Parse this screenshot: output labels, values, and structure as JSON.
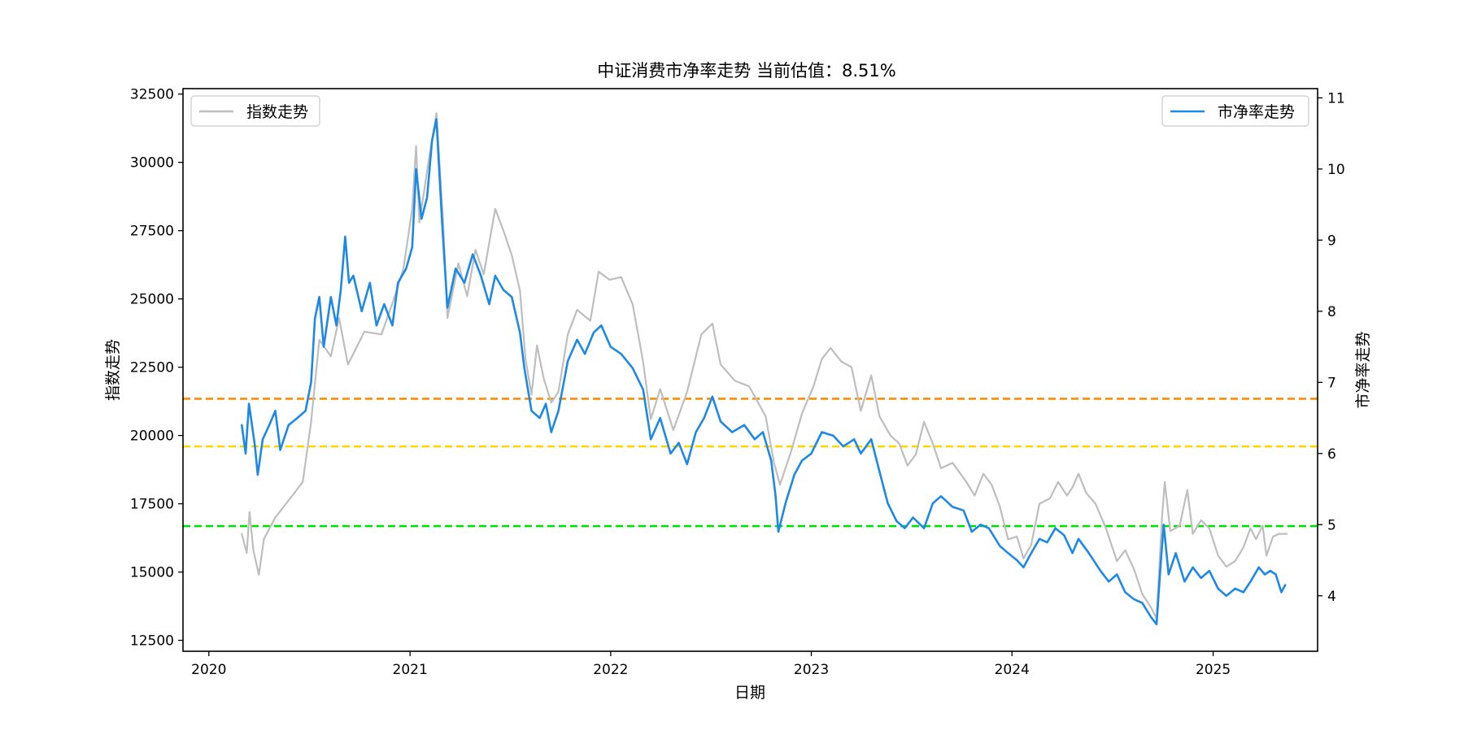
{
  "chart_data": {
    "type": "line",
    "title": "中证消费市净率走势 当前估值：8.51%",
    "xlabel": "日期",
    "ylabel_left": "指数走势",
    "ylabel_right": "市净率走势",
    "x_ticks": [
      "2020",
      "2021",
      "2022",
      "2023",
      "2024",
      "2025"
    ],
    "x_range": [
      "2019-11-15",
      "2025-07-10"
    ],
    "y_left_ticks": [
      12500,
      15000,
      17500,
      20000,
      22500,
      25000,
      27500,
      30000,
      32500
    ],
    "y_left_range": [
      12100,
      32700
    ],
    "y_right_ticks": [
      4,
      5,
      6,
      7,
      8,
      9,
      10,
      11
    ],
    "y_right_range": [
      3.22,
      11.13
    ],
    "legend_left": {
      "label": "指数走势",
      "placement": "upper-left"
    },
    "legend_right": {
      "label": "市净率走势",
      "placement": "upper-right"
    },
    "colors": {
      "index": "#bebebe",
      "pb": "#1e88e5",
      "line_orange": "#ff8c00",
      "line_yellow": "#ffd700",
      "line_green": "#00e000"
    },
    "reference_lines": [
      {
        "axis": "right",
        "value": 6.77,
        "color": "#ff8c00",
        "style": "dashed"
      },
      {
        "axis": "right",
        "value": 6.1,
        "color": "#ffd700",
        "style": "dashed"
      },
      {
        "axis": "right",
        "value": 4.98,
        "color": "#00e000",
        "style": "dashed"
      }
    ],
    "series": [
      {
        "name": "指数走势",
        "axis": "left",
        "points": [
          [
            "2020-03-01",
            16400
          ],
          [
            "2020-03-10",
            15700
          ],
          [
            "2020-03-15",
            17200
          ],
          [
            "2020-03-22",
            15800
          ],
          [
            "2020-04-01",
            14900
          ],
          [
            "2020-04-10",
            16200
          ],
          [
            "2020-05-01",
            17000
          ],
          [
            "2020-06-01",
            17800
          ],
          [
            "2020-06-20",
            18300
          ],
          [
            "2020-07-05",
            20500
          ],
          [
            "2020-07-20",
            23500
          ],
          [
            "2020-08-10",
            22900
          ],
          [
            "2020-08-25",
            24300
          ],
          [
            "2020-09-10",
            22600
          ],
          [
            "2020-10-10",
            23800
          ],
          [
            "2020-11-10",
            23700
          ],
          [
            "2020-12-01",
            24900
          ],
          [
            "2020-12-20",
            26100
          ],
          [
            "2021-01-05",
            28300
          ],
          [
            "2021-01-12",
            30600
          ],
          [
            "2021-01-18",
            27800
          ],
          [
            "2021-02-05",
            30200
          ],
          [
            "2021-02-18",
            31800
          ],
          [
            "2021-03-02",
            27900
          ],
          [
            "2021-03-10",
            24300
          ],
          [
            "2021-03-30",
            26300
          ],
          [
            "2021-04-15",
            25100
          ],
          [
            "2021-04-30",
            26800
          ],
          [
            "2021-05-15",
            25900
          ],
          [
            "2021-06-05",
            28300
          ],
          [
            "2021-06-20",
            27500
          ],
          [
            "2021-07-05",
            26600
          ],
          [
            "2021-07-20",
            25300
          ],
          [
            "2021-07-30",
            22800
          ],
          [
            "2021-08-10",
            21500
          ],
          [
            "2021-08-20",
            23300
          ],
          [
            "2021-09-01",
            22100
          ],
          [
            "2021-09-15",
            21200
          ],
          [
            "2021-09-28",
            21600
          ],
          [
            "2021-10-15",
            23700
          ],
          [
            "2021-11-01",
            24600
          ],
          [
            "2021-11-25",
            24200
          ],
          [
            "2021-12-10",
            26000
          ],
          [
            "2021-12-30",
            25700
          ],
          [
            "2022-01-20",
            25800
          ],
          [
            "2022-02-10",
            24800
          ],
          [
            "2022-03-01",
            22700
          ],
          [
            "2022-03-15",
            20600
          ],
          [
            "2022-04-01",
            21700
          ],
          [
            "2022-04-25",
            20200
          ],
          [
            "2022-05-20",
            21600
          ],
          [
            "2022-06-15",
            23700
          ],
          [
            "2022-07-05",
            24100
          ],
          [
            "2022-07-20",
            22600
          ],
          [
            "2022-08-15",
            22000
          ],
          [
            "2022-09-10",
            21800
          ],
          [
            "2022-10-10",
            20700
          ],
          [
            "2022-10-25",
            19000
          ],
          [
            "2022-11-05",
            18200
          ],
          [
            "2022-11-25",
            19400
          ],
          [
            "2022-12-15",
            20800
          ],
          [
            "2023-01-05",
            21800
          ],
          [
            "2023-01-20",
            22800
          ],
          [
            "2023-02-05",
            23200
          ],
          [
            "2023-02-25",
            22700
          ],
          [
            "2023-03-15",
            22500
          ],
          [
            "2023-04-01",
            20900
          ],
          [
            "2023-04-20",
            22200
          ],
          [
            "2023-05-05",
            20700
          ],
          [
            "2023-05-25",
            20000
          ],
          [
            "2023-06-10",
            19700
          ],
          [
            "2023-06-25",
            18900
          ],
          [
            "2023-07-10",
            19300
          ],
          [
            "2023-07-25",
            20500
          ],
          [
            "2023-08-10",
            19700
          ],
          [
            "2023-08-25",
            18800
          ],
          [
            "2023-09-15",
            19000
          ],
          [
            "2023-10-10",
            18300
          ],
          [
            "2023-10-25",
            17800
          ],
          [
            "2023-11-10",
            18600
          ],
          [
            "2023-11-25",
            18200
          ],
          [
            "2023-12-10",
            17400
          ],
          [
            "2023-12-25",
            16200
          ],
          [
            "2024-01-10",
            16300
          ],
          [
            "2024-01-22",
            15500
          ],
          [
            "2024-02-05",
            16000
          ],
          [
            "2024-02-20",
            17500
          ],
          [
            "2024-03-10",
            17700
          ],
          [
            "2024-03-25",
            18300
          ],
          [
            "2024-04-10",
            17800
          ],
          [
            "2024-04-20",
            18100
          ],
          [
            "2024-05-01",
            18600
          ],
          [
            "2024-05-15",
            17900
          ],
          [
            "2024-06-01",
            17500
          ],
          [
            "2024-06-20",
            16600
          ],
          [
            "2024-07-10",
            15400
          ],
          [
            "2024-07-25",
            15800
          ],
          [
            "2024-08-10",
            15100
          ],
          [
            "2024-08-25",
            14200
          ],
          [
            "2024-09-10",
            13700
          ],
          [
            "2024-09-20",
            13300
          ],
          [
            "2024-09-30",
            17000
          ],
          [
            "2024-10-05",
            18300
          ],
          [
            "2024-10-15",
            16500
          ],
          [
            "2024-11-01",
            16700
          ],
          [
            "2024-11-15",
            18000
          ],
          [
            "2024-11-25",
            16400
          ],
          [
            "2024-12-10",
            16900
          ],
          [
            "2024-12-25",
            16600
          ],
          [
            "2025-01-10",
            15600
          ],
          [
            "2025-01-25",
            15200
          ],
          [
            "2025-02-10",
            15400
          ],
          [
            "2025-02-25",
            15900
          ],
          [
            "2025-03-10",
            16600
          ],
          [
            "2025-03-20",
            16200
          ],
          [
            "2025-04-01",
            16700
          ],
          [
            "2025-04-08",
            15600
          ],
          [
            "2025-04-20",
            16300
          ],
          [
            "2025-05-01",
            16400
          ],
          [
            "2025-05-15",
            16400
          ]
        ]
      },
      {
        "name": "市净率走势",
        "axis": "right",
        "points": [
          [
            "2020-03-01",
            6.4
          ],
          [
            "2020-03-08",
            6.0
          ],
          [
            "2020-03-14",
            6.7
          ],
          [
            "2020-03-25",
            6.1
          ],
          [
            "2020-03-30",
            5.7
          ],
          [
            "2020-04-08",
            6.2
          ],
          [
            "2020-04-20",
            6.4
          ],
          [
            "2020-05-01",
            6.6
          ],
          [
            "2020-05-10",
            6.05
          ],
          [
            "2020-05-25",
            6.4
          ],
          [
            "2020-06-10",
            6.5
          ],
          [
            "2020-06-25",
            6.6
          ],
          [
            "2020-07-05",
            7.0
          ],
          [
            "2020-07-12",
            7.9
          ],
          [
            "2020-07-20",
            8.2
          ],
          [
            "2020-07-28",
            7.5
          ],
          [
            "2020-08-10",
            8.2
          ],
          [
            "2020-08-20",
            7.8
          ],
          [
            "2020-08-28",
            8.3
          ],
          [
            "2020-09-05",
            9.05
          ],
          [
            "2020-09-12",
            8.4
          ],
          [
            "2020-09-20",
            8.5
          ],
          [
            "2020-10-05",
            8.0
          ],
          [
            "2020-10-20",
            8.4
          ],
          [
            "2020-11-01",
            7.8
          ],
          [
            "2020-11-15",
            8.1
          ],
          [
            "2020-11-30",
            7.8
          ],
          [
            "2020-12-10",
            8.4
          ],
          [
            "2020-12-25",
            8.6
          ],
          [
            "2021-01-05",
            8.9
          ],
          [
            "2021-01-12",
            10.0
          ],
          [
            "2021-01-22",
            9.3
          ],
          [
            "2021-02-01",
            9.6
          ],
          [
            "2021-02-10",
            10.4
          ],
          [
            "2021-02-18",
            10.7
          ],
          [
            "2021-02-28",
            9.3
          ],
          [
            "2021-03-10",
            8.05
          ],
          [
            "2021-03-25",
            8.6
          ],
          [
            "2021-04-10",
            8.4
          ],
          [
            "2021-04-25",
            8.8
          ],
          [
            "2021-05-10",
            8.5
          ],
          [
            "2021-05-25",
            8.1
          ],
          [
            "2021-06-05",
            8.5
          ],
          [
            "2021-06-20",
            8.3
          ],
          [
            "2021-07-05",
            8.2
          ],
          [
            "2021-07-20",
            7.7
          ],
          [
            "2021-07-28",
            7.2
          ],
          [
            "2021-08-10",
            6.6
          ],
          [
            "2021-08-25",
            6.5
          ],
          [
            "2021-09-05",
            6.7
          ],
          [
            "2021-09-15",
            6.3
          ],
          [
            "2021-09-28",
            6.6
          ],
          [
            "2021-10-15",
            7.3
          ],
          [
            "2021-11-01",
            7.6
          ],
          [
            "2021-11-15",
            7.4
          ],
          [
            "2021-12-01",
            7.7
          ],
          [
            "2021-12-15",
            7.8
          ],
          [
            "2022-01-01",
            7.5
          ],
          [
            "2022-01-20",
            7.4
          ],
          [
            "2022-02-10",
            7.2
          ],
          [
            "2022-03-01",
            6.9
          ],
          [
            "2022-03-15",
            6.2
          ],
          [
            "2022-04-01",
            6.5
          ],
          [
            "2022-04-20",
            6.0
          ],
          [
            "2022-05-05",
            6.15
          ],
          [
            "2022-05-20",
            5.85
          ],
          [
            "2022-06-05",
            6.3
          ],
          [
            "2022-06-20",
            6.5
          ],
          [
            "2022-07-05",
            6.8
          ],
          [
            "2022-07-20",
            6.45
          ],
          [
            "2022-08-10",
            6.3
          ],
          [
            "2022-09-01",
            6.4
          ],
          [
            "2022-09-20",
            6.2
          ],
          [
            "2022-10-05",
            6.3
          ],
          [
            "2022-10-20",
            5.9
          ],
          [
            "2022-10-28",
            5.4
          ],
          [
            "2022-11-02",
            4.9
          ],
          [
            "2022-11-15",
            5.3
          ],
          [
            "2022-12-01",
            5.7
          ],
          [
            "2022-12-15",
            5.9
          ],
          [
            "2023-01-01",
            6.0
          ],
          [
            "2023-01-20",
            6.3
          ],
          [
            "2023-02-10",
            6.25
          ],
          [
            "2023-02-28",
            6.1
          ],
          [
            "2023-03-20",
            6.2
          ],
          [
            "2023-04-01",
            6.0
          ],
          [
            "2023-04-20",
            6.2
          ],
          [
            "2023-05-05",
            5.75
          ],
          [
            "2023-05-20",
            5.3
          ],
          [
            "2023-06-05",
            5.05
          ],
          [
            "2023-06-20",
            4.95
          ],
          [
            "2023-07-05",
            5.1
          ],
          [
            "2023-07-25",
            4.95
          ],
          [
            "2023-08-10",
            5.3
          ],
          [
            "2023-08-25",
            5.4
          ],
          [
            "2023-09-15",
            5.25
          ],
          [
            "2023-10-05",
            5.2
          ],
          [
            "2023-10-20",
            4.9
          ],
          [
            "2023-11-05",
            5.0
          ],
          [
            "2023-11-20",
            4.95
          ],
          [
            "2023-12-10",
            4.7
          ],
          [
            "2023-12-25",
            4.6
          ],
          [
            "2024-01-10",
            4.5
          ],
          [
            "2024-01-22",
            4.4
          ],
          [
            "2024-02-05",
            4.6
          ],
          [
            "2024-02-20",
            4.8
          ],
          [
            "2024-03-05",
            4.75
          ],
          [
            "2024-03-20",
            4.95
          ],
          [
            "2024-04-05",
            4.85
          ],
          [
            "2024-04-20",
            4.6
          ],
          [
            "2024-05-01",
            4.8
          ],
          [
            "2024-05-20",
            4.6
          ],
          [
            "2024-06-10",
            4.35
          ],
          [
            "2024-06-25",
            4.2
          ],
          [
            "2024-07-10",
            4.3
          ],
          [
            "2024-07-25",
            4.05
          ],
          [
            "2024-08-10",
            3.95
          ],
          [
            "2024-08-25",
            3.9
          ],
          [
            "2024-09-10",
            3.7
          ],
          [
            "2024-09-20",
            3.6
          ],
          [
            "2024-09-28",
            4.5
          ],
          [
            "2024-10-03",
            5.0
          ],
          [
            "2024-10-12",
            4.3
          ],
          [
            "2024-10-25",
            4.6
          ],
          [
            "2024-11-10",
            4.2
          ],
          [
            "2024-11-25",
            4.4
          ],
          [
            "2024-12-10",
            4.25
          ],
          [
            "2024-12-25",
            4.35
          ],
          [
            "2025-01-10",
            4.1
          ],
          [
            "2025-01-25",
            4.0
          ],
          [
            "2025-02-10",
            4.1
          ],
          [
            "2025-02-25",
            4.05
          ],
          [
            "2025-03-10",
            4.2
          ],
          [
            "2025-03-25",
            4.4
          ],
          [
            "2025-04-05",
            4.3
          ],
          [
            "2025-04-15",
            4.35
          ],
          [
            "2025-04-25",
            4.3
          ],
          [
            "2025-05-05",
            4.05
          ],
          [
            "2025-05-12",
            4.15
          ]
        ]
      }
    ]
  }
}
